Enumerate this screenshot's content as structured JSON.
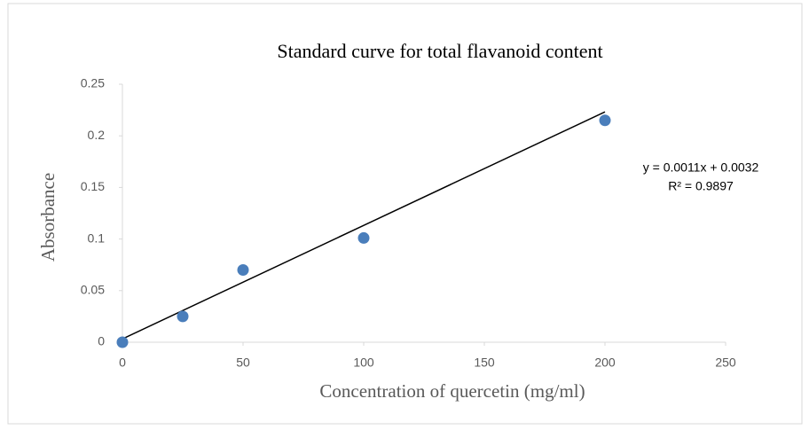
{
  "chart_data": {
    "type": "scatter",
    "title": "Standard curve for total flavanoid content",
    "x_label": "Concentration of quercetin (mg/ml)",
    "y_label": "Absorbance",
    "x": [
      0,
      25,
      50,
      100,
      200
    ],
    "values": [
      0,
      0.025,
      0.07,
      0.101,
      0.215
    ],
    "color": "#4a7ebb",
    "trendline": {
      "x": [
        0,
        200
      ],
      "values": [
        0.0032,
        0.2232
      ],
      "color": "#000000"
    },
    "annotations": [
      "y = 0.0011x + 0.0032",
      "R² = 0.9897"
    ],
    "xlim": [
      0,
      250
    ],
    "xticks": [
      0,
      50,
      100,
      150,
      200,
      250
    ],
    "ylim": [
      0,
      0.25
    ],
    "yticks": [
      0,
      0.05,
      0.1,
      0.15,
      0.2,
      0.25
    ],
    "grid": false
  }
}
